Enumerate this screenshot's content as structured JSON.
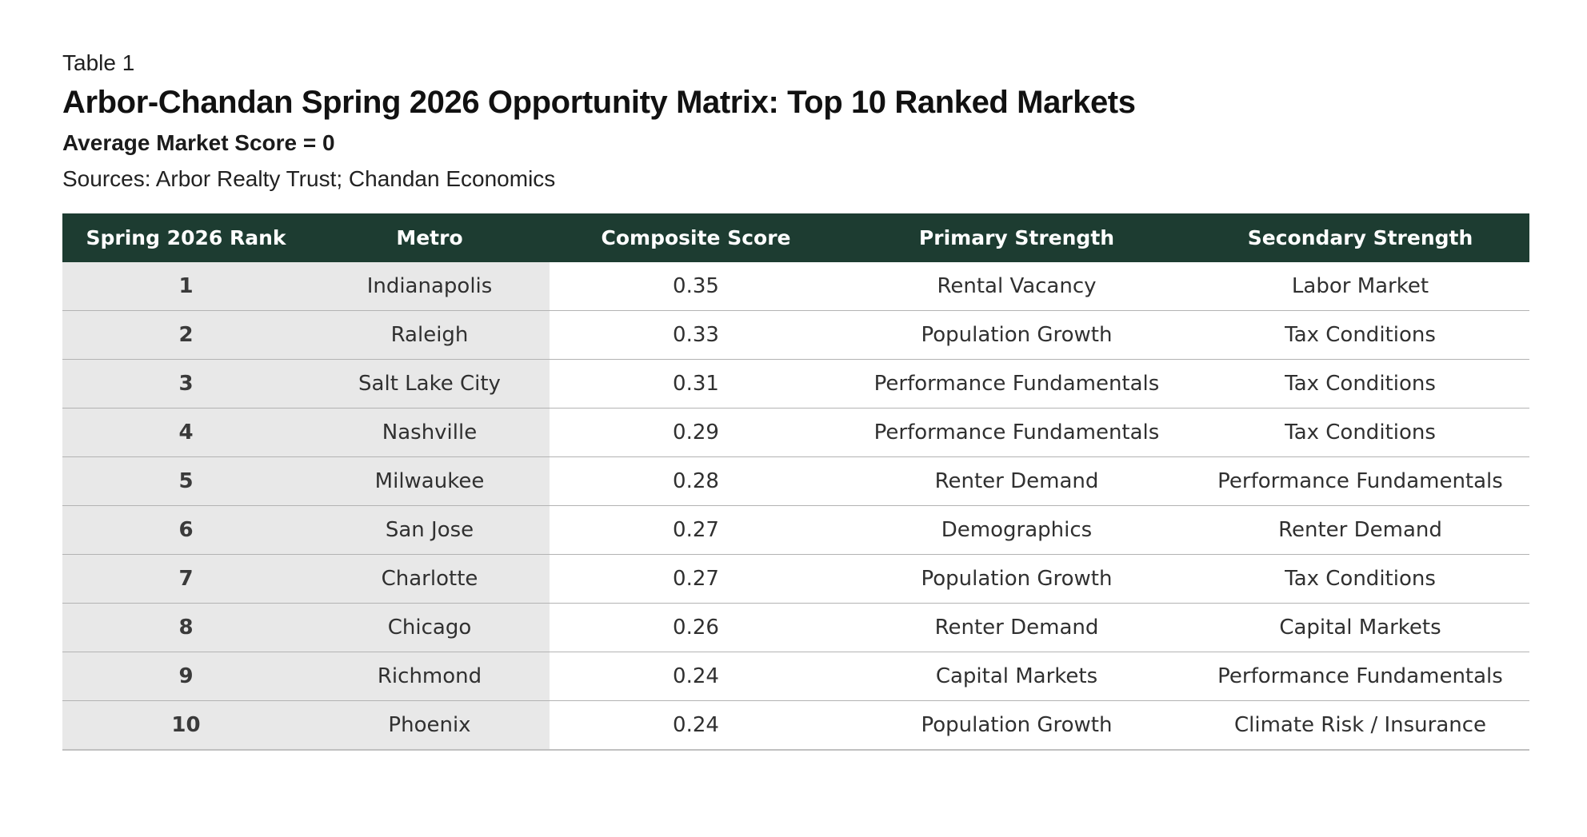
{
  "page": {
    "table_label": "Table 1",
    "title": "Arbor-Chandan Spring 2026 Opportunity Matrix: Top 10 Ranked Markets",
    "subtitle": "Average Market Score = 0",
    "sources": "Sources: Arbor Realty Trust; Chandan Economics"
  },
  "colors": {
    "header_bg": "#1d3c31",
    "header_text": "#ffffff",
    "shaded_column_bg": "#e8e8e8",
    "row_divider": "#b3b3b3",
    "body_text": "#303030"
  },
  "table": {
    "headers": [
      "Spring 2026 Rank",
      "Metro",
      "Composite Score",
      "Primary Strength",
      "Secondary Strength"
    ],
    "rows": [
      {
        "rank": "1",
        "metro": "Indianapolis",
        "composite_score": "0.35",
        "primary_strength": "Rental Vacancy",
        "secondary_strength": "Labor Market"
      },
      {
        "rank": "2",
        "metro": "Raleigh",
        "composite_score": "0.33",
        "primary_strength": "Population Growth",
        "secondary_strength": "Tax Conditions"
      },
      {
        "rank": "3",
        "metro": "Salt Lake City",
        "composite_score": "0.31",
        "primary_strength": "Performance Fundamentals",
        "secondary_strength": "Tax Conditions"
      },
      {
        "rank": "4",
        "metro": "Nashville",
        "composite_score": "0.29",
        "primary_strength": "Performance Fundamentals",
        "secondary_strength": "Tax Conditions"
      },
      {
        "rank": "5",
        "metro": "Milwaukee",
        "composite_score": "0.28",
        "primary_strength": "Renter Demand",
        "secondary_strength": "Performance Fundamentals"
      },
      {
        "rank": "6",
        "metro": "San Jose",
        "composite_score": "0.27",
        "primary_strength": "Demographics",
        "secondary_strength": "Renter Demand"
      },
      {
        "rank": "7",
        "metro": "Charlotte",
        "composite_score": "0.27",
        "primary_strength": "Population Growth",
        "secondary_strength": "Tax Conditions"
      },
      {
        "rank": "8",
        "metro": "Chicago",
        "composite_score": "0.26",
        "primary_strength": "Renter Demand",
        "secondary_strength": "Capital Markets"
      },
      {
        "rank": "9",
        "metro": "Richmond",
        "composite_score": "0.24",
        "primary_strength": "Capital Markets",
        "secondary_strength": "Performance Fundamentals"
      },
      {
        "rank": "10",
        "metro": "Phoenix",
        "composite_score": "0.24",
        "primary_strength": "Population Growth",
        "secondary_strength": "Climate Risk / Insurance"
      }
    ]
  }
}
